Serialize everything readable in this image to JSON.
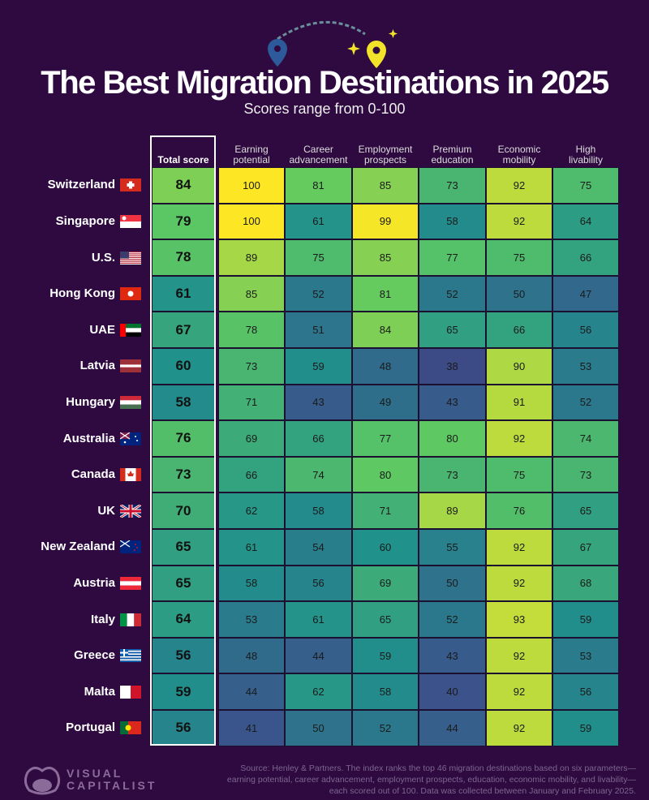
{
  "title": "The Best Migration Destinations in 2025",
  "subtitle": "Scores range from 0-100",
  "colors": {
    "background": "#2e0a40",
    "low": "#3b528b",
    "mid": "#21918c",
    "high": "#fde725"
  },
  "chart_data": {
    "type": "heatmap",
    "title": "The Best Migration Destinations in 2025",
    "subtitle": "Scores range from 0-100",
    "colorscale": "viridis",
    "value_range": [
      0,
      100
    ],
    "columns": [
      "Total score",
      "Earning potential",
      "Career advancement",
      "Employment prospects",
      "Premium education",
      "Economic mobility",
      "High livability"
    ],
    "rows": [
      {
        "country": "Switzerland",
        "flag": "switzerland-flag-icon",
        "values": [
          84,
          100,
          81,
          85,
          73,
          92,
          75
        ]
      },
      {
        "country": "Singapore",
        "flag": "singapore-flag-icon",
        "values": [
          79,
          100,
          61,
          99,
          58,
          92,
          64
        ]
      },
      {
        "country": "U.S.",
        "flag": "us-flag-icon",
        "values": [
          78,
          89,
          75,
          85,
          77,
          75,
          66
        ]
      },
      {
        "country": "Hong Kong",
        "flag": "hong-kong-flag-icon",
        "values": [
          61,
          85,
          52,
          81,
          52,
          50,
          47
        ]
      },
      {
        "country": "UAE",
        "flag": "uae-flag-icon",
        "values": [
          67,
          78,
          51,
          84,
          65,
          66,
          56
        ]
      },
      {
        "country": "Latvia",
        "flag": "latvia-flag-icon",
        "values": [
          60,
          73,
          59,
          48,
          38,
          90,
          53
        ]
      },
      {
        "country": "Hungary",
        "flag": "hungary-flag-icon",
        "values": [
          58,
          71,
          43,
          49,
          43,
          91,
          52
        ]
      },
      {
        "country": "Australia",
        "flag": "australia-flag-icon",
        "values": [
          76,
          69,
          66,
          77,
          80,
          92,
          74
        ]
      },
      {
        "country": "Canada",
        "flag": "canada-flag-icon",
        "values": [
          73,
          66,
          74,
          80,
          73,
          75,
          73
        ]
      },
      {
        "country": "UK",
        "flag": "uk-flag-icon",
        "values": [
          70,
          62,
          58,
          71,
          89,
          76,
          65
        ]
      },
      {
        "country": "New Zealand",
        "flag": "new-zealand-flag-icon",
        "values": [
          65,
          61,
          54,
          60,
          55,
          92,
          67
        ]
      },
      {
        "country": "Austria",
        "flag": "austria-flag-icon",
        "values": [
          65,
          58,
          56,
          69,
          50,
          92,
          68
        ]
      },
      {
        "country": "Italy",
        "flag": "italy-flag-icon",
        "values": [
          64,
          53,
          61,
          65,
          52,
          93,
          59
        ]
      },
      {
        "country": "Greece",
        "flag": "greece-flag-icon",
        "values": [
          56,
          48,
          44,
          59,
          43,
          92,
          53
        ]
      },
      {
        "country": "Malta",
        "flag": "malta-flag-icon",
        "values": [
          59,
          44,
          62,
          58,
          40,
          92,
          56
        ]
      },
      {
        "country": "Portugal",
        "flag": "portugal-flag-icon",
        "values": [
          56,
          41,
          50,
          52,
          44,
          92,
          59
        ]
      }
    ]
  },
  "footer": {
    "logo": "VISUAL CAPITALIST",
    "logo_line1": "VISUAL",
    "logo_line2": "CAPITALIST",
    "source": "Source: Henley & Partners. The index ranks the top 46 migration destinations based on six parameters—earning potential, career advancement, employment prospects, education, economic mobility, and livability—each scored out of 100. Data was collected between January and February 2025."
  }
}
